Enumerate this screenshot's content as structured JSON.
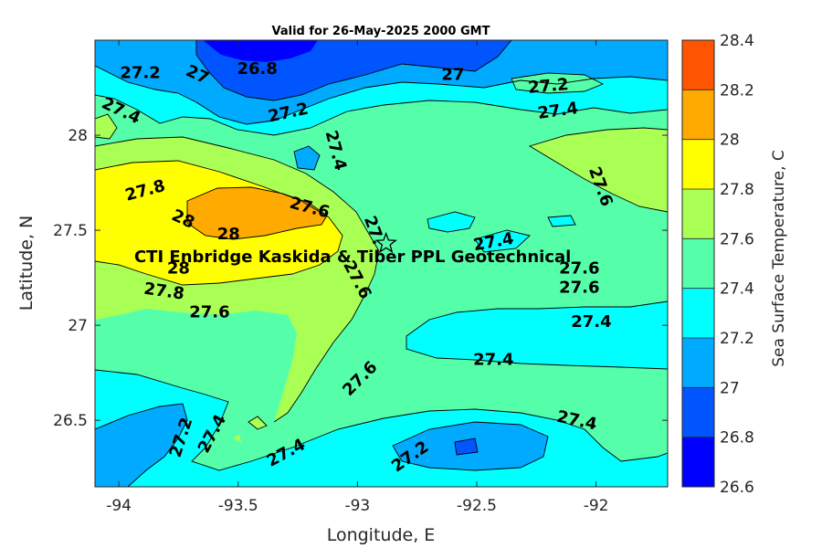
{
  "chart_data": {
    "type": "contourf",
    "title": "Valid for 26-May-2025 2000 GMT",
    "xlabel": "Longitude, E",
    "ylabel": "Latitude, N",
    "xlim": [
      -94.1,
      -91.7
    ],
    "ylim": [
      26.15,
      28.5
    ],
    "xticks": [
      {
        "value": -94,
        "label": "-94"
      },
      {
        "value": -93.5,
        "label": "-93.5"
      },
      {
        "value": -93,
        "label": "-93"
      },
      {
        "value": -92.5,
        "label": "-92.5"
      },
      {
        "value": -92,
        "label": "-92"
      }
    ],
    "yticks": [
      {
        "value": 26.5,
        "label": "26.5"
      },
      {
        "value": 27,
        "label": "27"
      },
      {
        "value": 27.5,
        "label": "27.5"
      },
      {
        "value": 28,
        "label": "28"
      }
    ],
    "colorbar": {
      "label": "Sea Surface Temperature, C",
      "levels": [
        26.6,
        26.8,
        27.0,
        27.2,
        27.4,
        27.6,
        27.8,
        28.0,
        28.2,
        28.4
      ],
      "tick_labels": [
        "26.6",
        "26.8",
        "27",
        "27.2",
        "27.4",
        "27.6",
        "27.8",
        "28",
        "28.2",
        "28.4"
      ],
      "colors": [
        "#0000FF",
        "#0055FF",
        "#00AAFF",
        "#00FFFF",
        "#55FFAA",
        "#AAFF55",
        "#FFFF00",
        "#FFAA00",
        "#FF5500"
      ]
    },
    "contour_labels": [
      {
        "text": "27.2",
        "lon": -93.91,
        "lat": 28.33,
        "angle": 0
      },
      {
        "text": "27",
        "lon": -93.67,
        "lat": 28.32,
        "angle": 25
      },
      {
        "text": "26.8",
        "lon": -93.42,
        "lat": 28.35,
        "angle": 0
      },
      {
        "text": "27",
        "lon": -92.6,
        "lat": 28.32,
        "angle": 0
      },
      {
        "text": "27.2",
        "lon": -92.2,
        "lat": 28.26,
        "angle": -5
      },
      {
        "text": "27.4",
        "lon": -93.99,
        "lat": 28.13,
        "angle": 25
      },
      {
        "text": "27.2",
        "lon": -93.29,
        "lat": 28.12,
        "angle": -12
      },
      {
        "text": "27.4",
        "lon": -92.16,
        "lat": 28.13,
        "angle": -8
      },
      {
        "text": "27.4",
        "lon": -93.09,
        "lat": 27.92,
        "angle": 75
      },
      {
        "text": "27.6",
        "lon": -91.98,
        "lat": 27.73,
        "angle": 70
      },
      {
        "text": "27.8",
        "lon": -93.89,
        "lat": 27.71,
        "angle": -15
      },
      {
        "text": "27.6",
        "lon": -93.2,
        "lat": 27.62,
        "angle": 15
      },
      {
        "text": "28",
        "lon": -93.73,
        "lat": 27.56,
        "angle": 25
      },
      {
        "text": "28",
        "lon": -93.54,
        "lat": 27.48,
        "angle": 0
      },
      {
        "text": "27.",
        "lon": -92.93,
        "lat": 27.5,
        "angle": 70
      },
      {
        "text": "27.4",
        "lon": -92.43,
        "lat": 27.44,
        "angle": -10
      },
      {
        "text": "28",
        "lon": -93.75,
        "lat": 27.3,
        "angle": 0
      },
      {
        "text": "27.6",
        "lon": -93.0,
        "lat": 27.24,
        "angle": 62
      },
      {
        "text": "27.6",
        "lon": -92.07,
        "lat": 27.3,
        "angle": 0
      },
      {
        "text": "27.8",
        "lon": -93.81,
        "lat": 27.18,
        "angle": 8
      },
      {
        "text": "27.6",
        "lon": -92.07,
        "lat": 27.2,
        "angle": 0
      },
      {
        "text": "27.6",
        "lon": -93.62,
        "lat": 27.07,
        "angle": 0
      },
      {
        "text": "27.4",
        "lon": -92.02,
        "lat": 27.02,
        "angle": 0
      },
      {
        "text": "27.4",
        "lon": -92.43,
        "lat": 26.82,
        "angle": 0
      },
      {
        "text": "27.6",
        "lon": -92.99,
        "lat": 26.72,
        "angle": -45
      },
      {
        "text": "27.4",
        "lon": -92.08,
        "lat": 26.5,
        "angle": 12
      },
      {
        "text": "27.2",
        "lon": -93.74,
        "lat": 26.41,
        "angle": -72
      },
      {
        "text": "27.4",
        "lon": -93.61,
        "lat": 26.43,
        "angle": -62
      },
      {
        "text": "27.4",
        "lon": -93.3,
        "lat": 26.33,
        "angle": -28
      },
      {
        "text": "27.2",
        "lon": -92.78,
        "lat": 26.31,
        "angle": -35
      }
    ],
    "annotation": {
      "text": "CTI Enbridge  Kaskida & Tiber PPL Geotechnical",
      "lon": -93.02,
      "lat": 27.36
    },
    "marker": {
      "type": "star",
      "lon": -92.88,
      "lat": 27.43
    }
  }
}
